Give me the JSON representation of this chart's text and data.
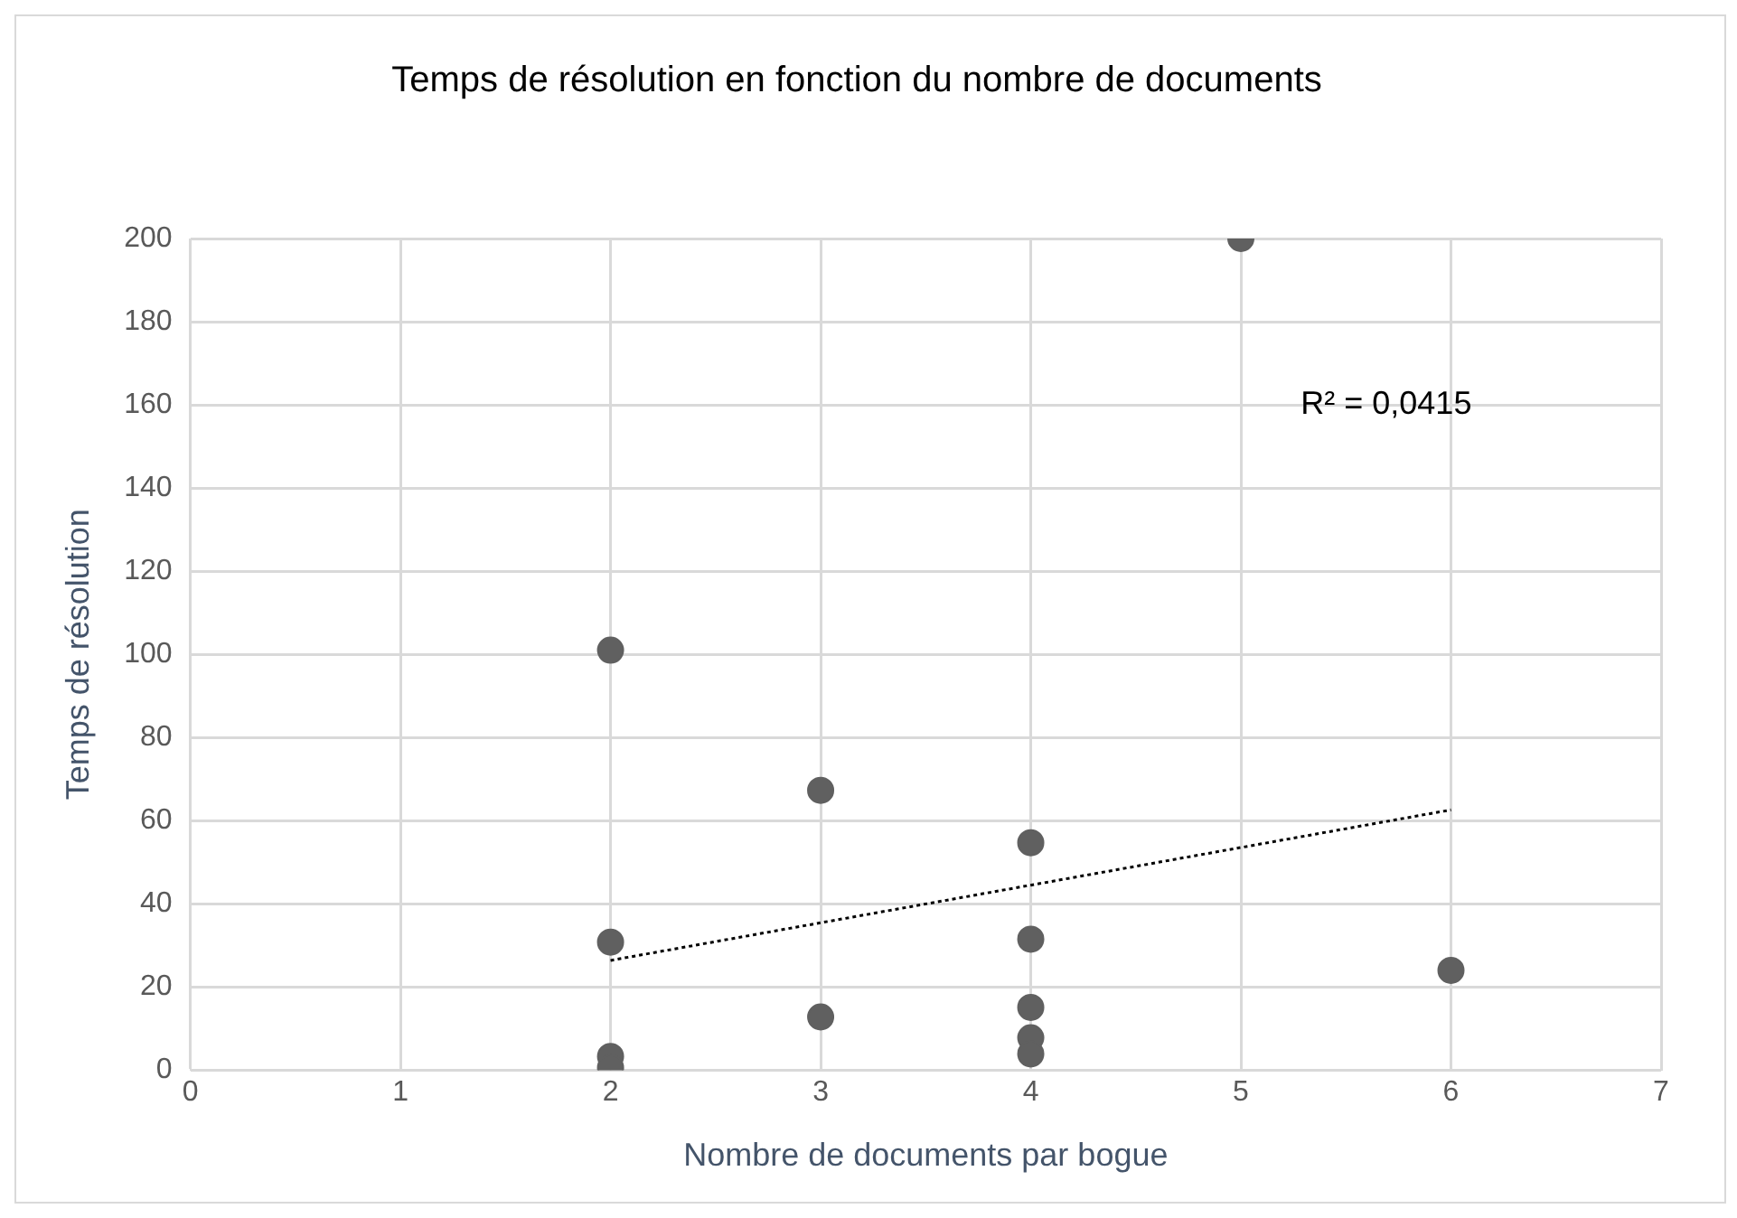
{
  "chart_data": {
    "type": "scatter",
    "title": "Temps de résolution en fonction du nombre de documents",
    "xlabel": "Nombre de documents par bogue",
    "ylabel": "Temps de résolution",
    "annotations": [
      "R² = 0,0415"
    ],
    "xlim": [
      0,
      7
    ],
    "xticks": [
      0,
      1,
      2,
      3,
      4,
      5,
      6,
      7
    ],
    "ylim": [
      0,
      200
    ],
    "yticks": [
      0,
      20,
      40,
      60,
      80,
      100,
      120,
      140,
      160,
      180,
      200
    ],
    "grid": true,
    "legend": false,
    "marker": "circle",
    "series": [
      {
        "color": "#606060",
        "x": [
          2,
          2,
          2,
          2,
          3,
          3,
          4,
          4,
          4,
          4,
          4,
          5,
          6
        ],
        "values": [
          101,
          30.8,
          3.3,
          0.6,
          67.3,
          12.8,
          54.7,
          31.5,
          15.1,
          7.8,
          3.9,
          200,
          24
        ]
      },
      {
        "type": "line",
        "color": "#000000",
        "line_style": "dotted",
        "marker": "none",
        "x": [
          2,
          6
        ],
        "values": [
          26.4,
          62.6
        ]
      }
    ]
  }
}
